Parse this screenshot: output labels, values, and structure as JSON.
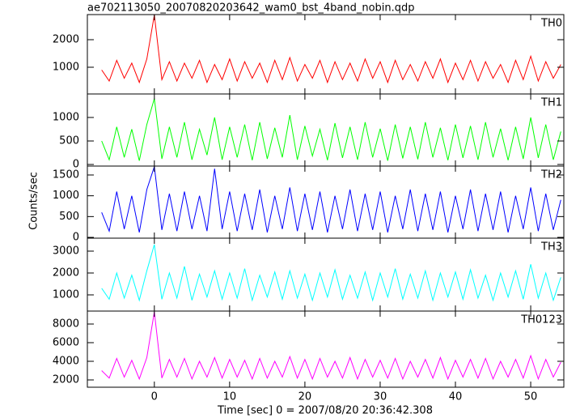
{
  "chart_data": {
    "type": "line",
    "title": "ae702113050_20070820203642_wam0_bst_4band_nobin.qdp",
    "xlabel": "Time [sec] 0 = 2007/08/20 20:36:42.308",
    "ylabel": "Counts/sec",
    "xlim": [
      -8.9,
      54.4
    ],
    "xticks": [
      0,
      10,
      20,
      30,
      40,
      50
    ],
    "x": [
      -7,
      -6,
      -5,
      -4,
      -3,
      -2,
      -1,
      0,
      1,
      2,
      3,
      4,
      5,
      6,
      7,
      8,
      9,
      10,
      11,
      12,
      13,
      14,
      15,
      16,
      17,
      18,
      19,
      20,
      21,
      22,
      23,
      24,
      25,
      26,
      27,
      28,
      29,
      30,
      31,
      32,
      33,
      34,
      35,
      36,
      37,
      38,
      39,
      40,
      41,
      42,
      43,
      44,
      45,
      46,
      47,
      48,
      49,
      50,
      51,
      52,
      53,
      54
    ],
    "series": [
      {
        "name": "TH0",
        "color": "#ff0000",
        "ylim": [
          29,
          2912
        ],
        "yticks": [
          1000,
          2000
        ],
        "values": [
          900,
          500,
          1250,
          600,
          1150,
          450,
          1300,
          2900,
          550,
          1200,
          500,
          1150,
          600,
          1250,
          450,
          1100,
          550,
          1300,
          500,
          1200,
          600,
          1150,
          450,
          1250,
          550,
          1350,
          500,
          1100,
          600,
          1250,
          450,
          1200,
          550,
          1150,
          500,
          1300,
          600,
          1200,
          450,
          1250,
          550,
          1100,
          500,
          1200,
          600,
          1300,
          450,
          1150,
          550,
          1250,
          500,
          1200,
          600,
          1100,
          450,
          1250,
          550,
          1400,
          500,
          1200,
          600,
          1100
        ]
      },
      {
        "name": "TH1",
        "color": "#00ff00",
        "ylim": [
          -34,
          1500
        ],
        "yticks": [
          0,
          500,
          1000
        ],
        "values": [
          500,
          100,
          800,
          150,
          750,
          80,
          850,
          1400,
          120,
          800,
          150,
          900,
          100,
          750,
          200,
          1000,
          100,
          800,
          150,
          850,
          90,
          900,
          120,
          780,
          150,
          1050,
          100,
          820,
          180,
          750,
          90,
          880,
          140,
          800,
          100,
          900,
          150,
          760,
          80,
          850,
          130,
          800,
          110,
          900,
          150,
          780,
          90,
          850,
          140,
          820,
          100,
          900,
          150,
          760,
          90,
          800,
          120,
          1000,
          140,
          850,
          100,
          700
        ]
      },
      {
        "name": "TH2",
        "color": "#0000ff",
        "ylim": [
          -19,
          1714
        ],
        "yticks": [
          0,
          500,
          1000,
          1500
        ],
        "values": [
          600,
          150,
          1100,
          200,
          1000,
          120,
          1150,
          1700,
          180,
          1050,
          150,
          1100,
          200,
          1000,
          150,
          1650,
          200,
          1100,
          150,
          1050,
          180,
          1150,
          120,
          1000,
          200,
          1200,
          150,
          1050,
          180,
          1100,
          120,
          1000,
          200,
          1150,
          150,
          1050,
          180,
          1100,
          120,
          1000,
          200,
          1150,
          150,
          1050,
          180,
          1100,
          120,
          1000,
          200,
          1150,
          150,
          1050,
          180,
          1100,
          120,
          1000,
          200,
          1200,
          150,
          1050,
          180,
          900
        ]
      },
      {
        "name": "TH3",
        "color": "#00ffff",
        "ylim": [
          259,
          3593
        ],
        "yticks": [
          1000,
          2000,
          3000
        ],
        "values": [
          1300,
          800,
          2000,
          850,
          1900,
          750,
          2100,
          3300,
          800,
          2000,
          850,
          2300,
          750,
          1950,
          900,
          2100,
          800,
          2000,
          850,
          2200,
          750,
          1900,
          900,
          2050,
          800,
          2100,
          850,
          1950,
          750,
          2000,
          900,
          2150,
          800,
          1900,
          850,
          2050,
          750,
          2000,
          900,
          2200,
          800,
          1950,
          850,
          2100,
          750,
          2000,
          900,
          2050,
          800,
          2150,
          850,
          1900,
          750,
          2000,
          900,
          2100,
          800,
          2400,
          850,
          2000,
          750,
          1800
        ]
      },
      {
        "name": "TH0123",
        "color": "#ff00ff",
        "ylim": [
          1217,
          9391
        ],
        "yticks": [
          2000,
          4000,
          6000,
          8000
        ],
        "values": [
          3000,
          2200,
          4300,
          2300,
          4100,
          2100,
          4400,
          9300,
          2200,
          4200,
          2300,
          4300,
          2100,
          4000,
          2300,
          4400,
          2200,
          4200,
          2300,
          4100,
          2100,
          4300,
          2200,
          4000,
          2300,
          4500,
          2200,
          4200,
          2100,
          4300,
          2300,
          4000,
          2200,
          4400,
          2100,
          4200,
          2300,
          4100,
          2200,
          4300,
          2100,
          4000,
          2300,
          4200,
          2200,
          4400,
          2100,
          4100,
          2300,
          4200,
          2200,
          4300,
          2100,
          4000,
          2300,
          4200,
          2200,
          4600,
          2100,
          4200,
          2300,
          3900
        ]
      }
    ]
  }
}
